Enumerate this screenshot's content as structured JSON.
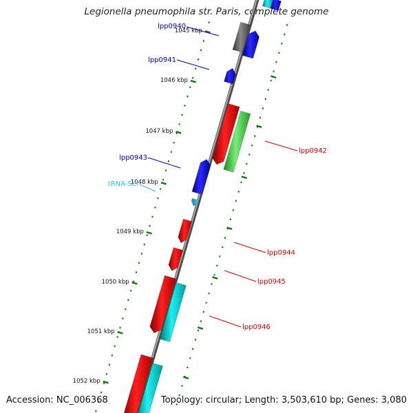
{
  "title": "Legionella pneumophila str. Paris, complete genome",
  "accession_text": "Accession: NC_006368",
  "summary_text": "Topology: circular; Length: 3,503,610 bp; Genes: 3,080",
  "ticks": [
    {
      "label": "1045 kbp"
    },
    {
      "label": "1046 kbp"
    },
    {
      "label": "1047 kbp"
    },
    {
      "label": "1048 kbp"
    },
    {
      "label": "1049 kbp"
    },
    {
      "label": "1050 kbp"
    },
    {
      "label": "1051 kbp"
    },
    {
      "label": "1052 kbp"
    }
  ],
  "features": [
    {
      "name": "lpp0940",
      "color": "#0000cc"
    },
    {
      "name": "lpp0941",
      "color": "#0000cc"
    },
    {
      "name": "lpp0942",
      "color": "#dd0000"
    },
    {
      "name": "lpp0943",
      "color": "#0000cc"
    },
    {
      "name": "tRNA-Ser",
      "color": "#33bbdd"
    },
    {
      "name": "lpp0944",
      "color": "#dd0000"
    },
    {
      "name": "lpp0945",
      "color": "#dd0000"
    },
    {
      "name": "lpp0946",
      "color": "#dd0000"
    }
  ],
  "colors": {
    "backbone": "#8a8a8a",
    "forward_cds": "#1010e0",
    "reverse_cds": "#ee1111",
    "rrna_trna": "#00c8c8",
    "orthologous": "#44cc44",
    "other": "#666666",
    "tick": "#117711"
  }
}
